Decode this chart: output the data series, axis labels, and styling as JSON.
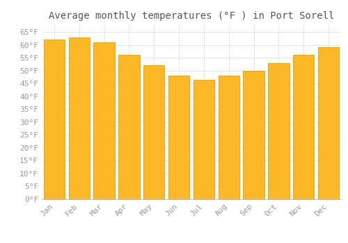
{
  "title": "Average monthly temperatures (°F ) in Port Sorell",
  "months": [
    "Jan",
    "Feb",
    "Mar",
    "Apr",
    "May",
    "Jun",
    "Jul",
    "Aug",
    "Sep",
    "Oct",
    "Nov",
    "Dec"
  ],
  "values": [
    62,
    63,
    61,
    56,
    52,
    48,
    46.5,
    48,
    50,
    53,
    56,
    59
  ],
  "bar_color": "#FDB827",
  "bar_edge_color": "#E89A00",
  "background_color": "#FFFFFF",
  "grid_color": "#DDDDDD",
  "ylim": [
    0,
    68
  ],
  "yticks": [
    0,
    5,
    10,
    15,
    20,
    25,
    30,
    35,
    40,
    45,
    50,
    55,
    60,
    65
  ],
  "title_fontsize": 10,
  "tick_fontsize": 8,
  "font_family": "monospace",
  "tick_color": "#999999",
  "title_color": "#555555"
}
